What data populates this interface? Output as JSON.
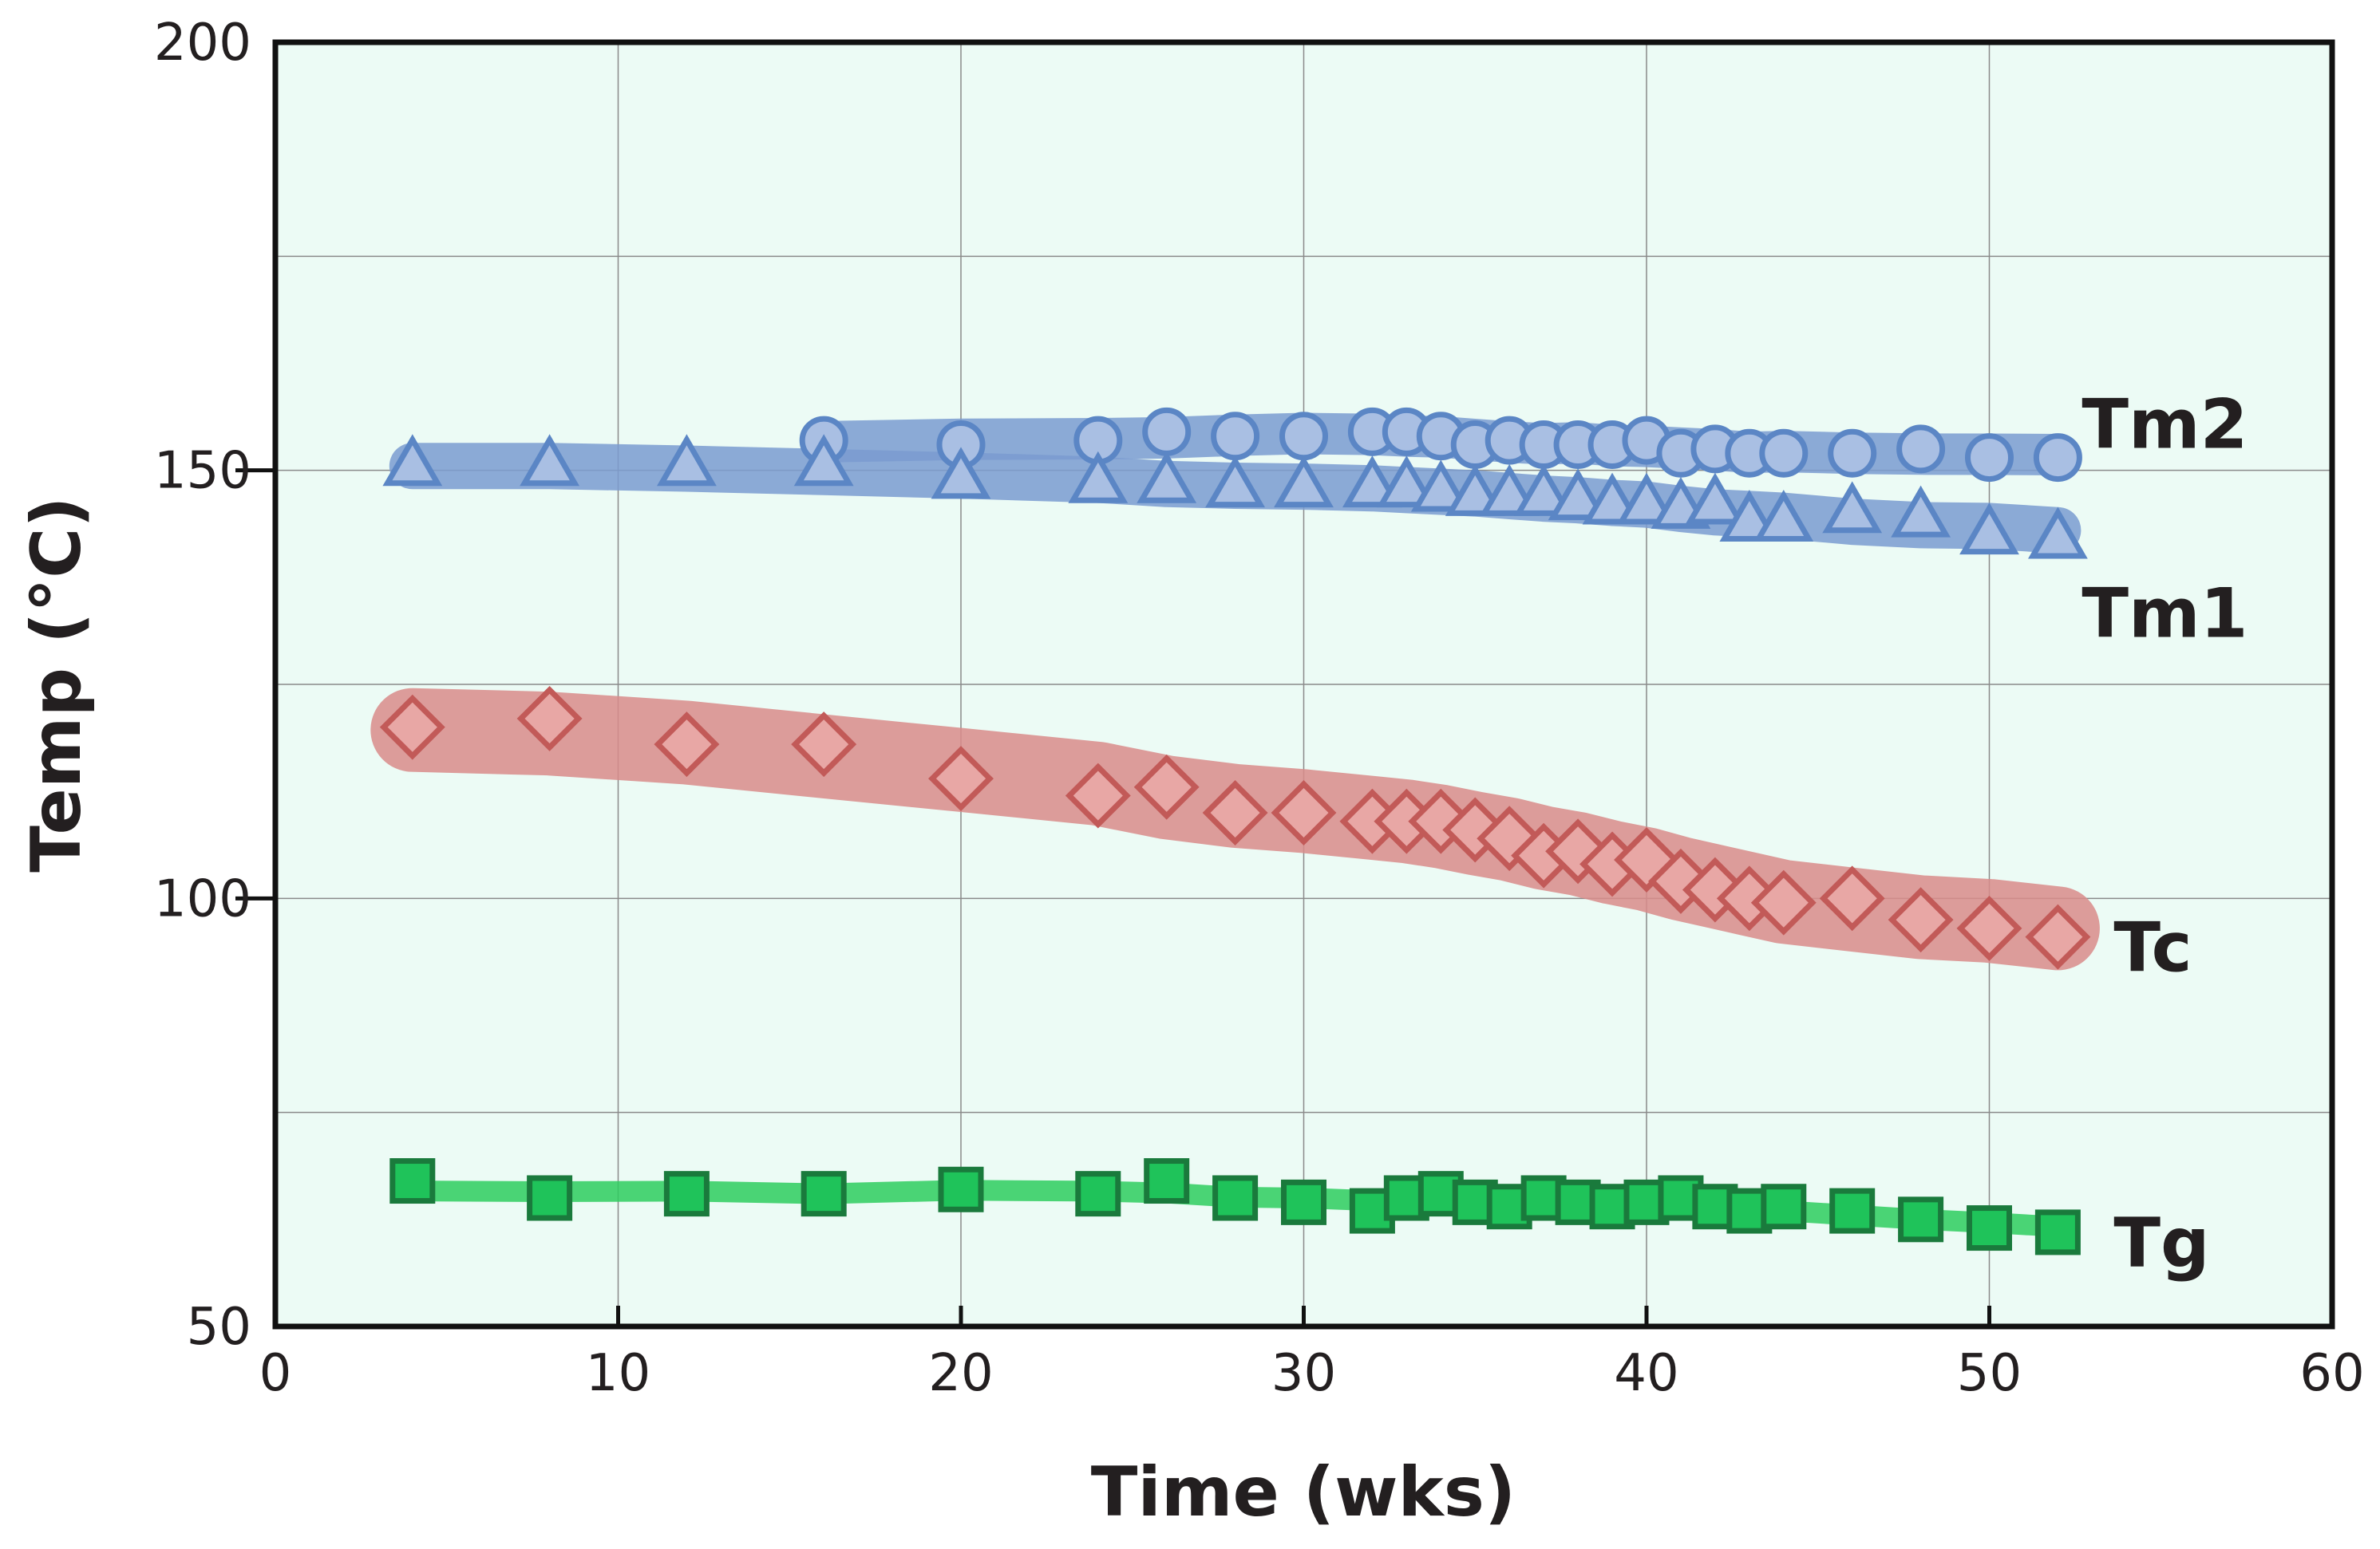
{
  "chart_data": {
    "type": "scatter",
    "title": "",
    "xlabel": "Time (wks)",
    "ylabel": "Temp (°C)",
    "xlim": [
      0,
      60
    ],
    "ylim": [
      50,
      200
    ],
    "xticks": [
      0,
      10,
      20,
      30,
      40,
      50,
      60
    ],
    "yticks": [
      50,
      100,
      150,
      200
    ],
    "grid": true,
    "plot_background": "#ecfbf5",
    "series": [
      {
        "name": "Tm2",
        "marker": "circle",
        "color": "#5b86c5",
        "band_color": "#7a9bd0",
        "x": [
          16,
          20,
          24,
          26,
          28,
          30,
          32,
          33,
          34,
          35,
          36,
          37,
          38,
          39,
          40,
          41,
          42,
          43,
          44,
          46,
          48,
          50,
          52
        ],
        "y": [
          153.5,
          153,
          153.5,
          154.5,
          154,
          154,
          154.5,
          154.5,
          154,
          153,
          153.5,
          153,
          153,
          153,
          153.5,
          152,
          152.5,
          152,
          152,
          152,
          152.5,
          151.5,
          151.5
        ]
      },
      {
        "name": "Tm1",
        "marker": "triangle",
        "color": "#5b86c5",
        "band_color": "#7a9bd0",
        "x": [
          4,
          8,
          12,
          16,
          20,
          24,
          26,
          28,
          30,
          32,
          33,
          34,
          35,
          36,
          37,
          38,
          39,
          40,
          41,
          42,
          43,
          44,
          46,
          48,
          50,
          52
        ],
        "y": [
          150.5,
          150.5,
          150.5,
          150.5,
          149,
          148.5,
          148.5,
          148,
          148,
          148,
          148,
          147.5,
          147,
          147,
          147,
          146.5,
          146,
          146,
          145.5,
          146,
          144,
          144,
          145,
          144.5,
          142.5,
          142
        ]
      },
      {
        "name": "Tc",
        "marker": "diamond",
        "color": "#c25a58",
        "band_color": "#d98b8a",
        "x": [
          4,
          8,
          12,
          16,
          20,
          24,
          26,
          28,
          30,
          32,
          33,
          34,
          35,
          36,
          37,
          38,
          39,
          40,
          41,
          42,
          43,
          44,
          46,
          48,
          50,
          52
        ],
        "y": [
          120,
          121,
          118,
          118,
          114,
          112,
          113,
          110,
          110,
          109,
          109,
          109,
          108,
          107,
          105,
          105.5,
          104,
          104.5,
          102,
          101,
          100,
          99.5,
          100,
          97.5,
          96.5,
          95.5
        ]
      },
      {
        "name": "Tg",
        "marker": "square",
        "color": "#1a7a3c",
        "fill": "#1fc35a",
        "band_color": "#2ecc5e",
        "x": [
          4,
          8,
          12,
          16,
          20,
          24,
          26,
          28,
          30,
          32,
          33,
          34,
          35,
          36,
          37,
          38,
          39,
          40,
          41,
          42,
          43,
          44,
          46,
          48,
          50,
          52
        ],
        "y": [
          67,
          65,
          65.5,
          65.5,
          66,
          65.5,
          67,
          65,
          64.5,
          63.5,
          65,
          65.5,
          64.5,
          64,
          65,
          64.5,
          64,
          64.5,
          65,
          64,
          63.5,
          64,
          63.5,
          62.5,
          61.5,
          61
        ]
      }
    ]
  }
}
